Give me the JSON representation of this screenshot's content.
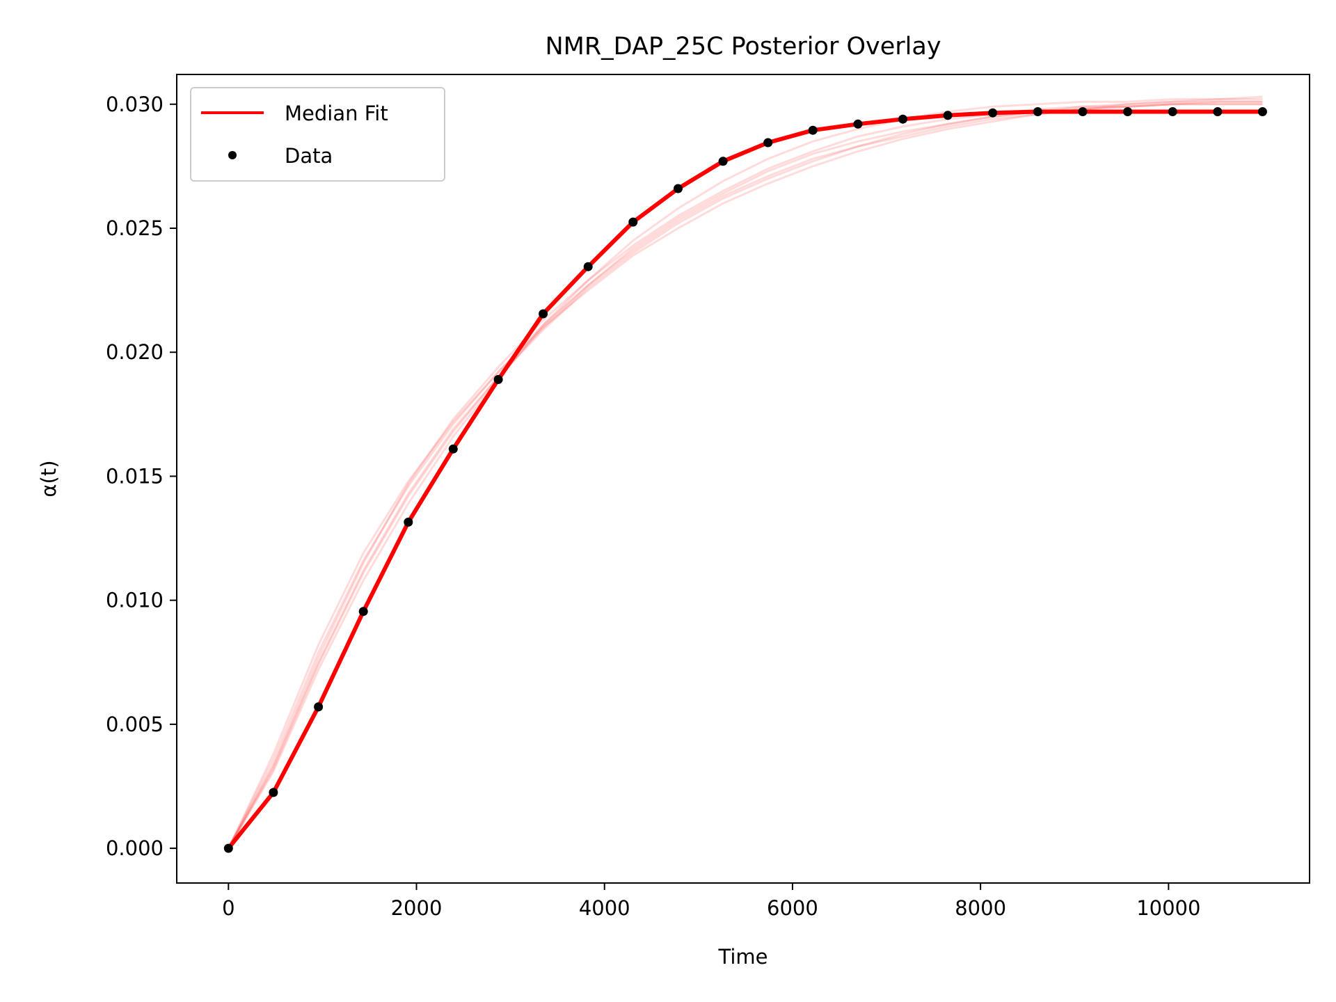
{
  "chart_data": {
    "type": "line",
    "title": "NMR_DAP_25C Posterior Overlay",
    "xlabel": "Time",
    "ylabel": "α(t)",
    "xlim": [
      -550,
      11500
    ],
    "ylim": [
      -0.0014,
      0.0312
    ],
    "xticks": [
      0,
      2000,
      4000,
      6000,
      8000,
      10000
    ],
    "xtick_labels": [
      "0",
      "2000",
      "4000",
      "6000",
      "8000",
      "10000"
    ],
    "yticks": [
      0.0,
      0.005,
      0.01,
      0.015,
      0.02,
      0.025,
      0.03
    ],
    "ytick_labels": [
      "0.000",
      "0.005",
      "0.010",
      "0.015",
      "0.020",
      "0.025",
      "0.030"
    ],
    "grid": false,
    "legend": {
      "position": "top-left",
      "entries": [
        "Median Fit",
        "Data"
      ]
    },
    "colors": {
      "median": "#ff0000",
      "posterior": "#ff0000",
      "data": "#000000"
    },
    "x": [
      0,
      478,
      957,
      1435,
      1913,
      2391,
      2870,
      3348,
      3826,
      4304,
      4783,
      5261,
      5739,
      6217,
      6696,
      7174,
      7652,
      8130,
      8609,
      9087,
      9565,
      10043,
      10522,
      11000
    ],
    "series": [
      {
        "name": "Median Fit",
        "kind": "line",
        "values": [
          0.0,
          0.00225,
          0.0057,
          0.00955,
          0.01315,
          0.0161,
          0.0189,
          0.02155,
          0.02345,
          0.02525,
          0.0266,
          0.0277,
          0.02845,
          0.02895,
          0.0292,
          0.0294,
          0.02955,
          0.02965,
          0.0297,
          0.0297,
          0.0297,
          0.0297,
          0.0297,
          0.0297
        ]
      },
      {
        "name": "Data",
        "kind": "scatter",
        "values": [
          0.0,
          0.00225,
          0.0057,
          0.00955,
          0.01315,
          0.0161,
          0.0189,
          0.02155,
          0.02345,
          0.02525,
          0.0266,
          0.0277,
          0.02845,
          0.02895,
          0.0292,
          0.0294,
          0.02955,
          0.02965,
          0.0297,
          0.0297,
          0.0297,
          0.0297,
          0.0297,
          0.0297
        ]
      }
    ],
    "posterior_samples": [
      [
        0.0,
        0.0031,
        0.0072,
        0.0108,
        0.0139,
        0.0166,
        0.0189,
        0.0211,
        0.0229,
        0.0245,
        0.0258,
        0.0269,
        0.0278,
        0.0285,
        0.029,
        0.0294,
        0.0297,
        0.0299,
        0.03,
        0.0301,
        0.0301,
        0.0302,
        0.0302,
        0.0302
      ],
      [
        0.0,
        0.0033,
        0.0075,
        0.0112,
        0.0143,
        0.0169,
        0.019,
        0.021,
        0.0227,
        0.0242,
        0.0254,
        0.0264,
        0.0273,
        0.028,
        0.0285,
        0.0289,
        0.0292,
        0.0295,
        0.0297,
        0.0298,
        0.0299,
        0.03,
        0.03,
        0.03
      ],
      [
        0.0,
        0.0036,
        0.0079,
        0.0116,
        0.0146,
        0.0171,
        0.0192,
        0.0211,
        0.0227,
        0.0241,
        0.0253,
        0.0263,
        0.0271,
        0.0278,
        0.0283,
        0.0287,
        0.0291,
        0.0294,
        0.0296,
        0.0298,
        0.0299,
        0.03,
        0.0301,
        0.0301
      ],
      [
        0.0,
        0.0038,
        0.0082,
        0.0119,
        0.0148,
        0.0172,
        0.0192,
        0.021,
        0.0225,
        0.0239,
        0.025,
        0.026,
        0.0268,
        0.0275,
        0.0281,
        0.0286,
        0.029,
        0.0293,
        0.0296,
        0.0298,
        0.03,
        0.0301,
        0.0302,
        0.0303
      ],
      [
        0.0,
        0.0034,
        0.0077,
        0.0115,
        0.0147,
        0.0173,
        0.0194,
        0.0213,
        0.0229,
        0.0243,
        0.0255,
        0.0265,
        0.0274,
        0.0281,
        0.0287,
        0.0291,
        0.0294,
        0.0296,
        0.0298,
        0.0299,
        0.0299,
        0.03,
        0.03,
        0.03
      ],
      [
        0.0,
        0.0032,
        0.0074,
        0.0111,
        0.0142,
        0.0168,
        0.019,
        0.0209,
        0.0226,
        0.024,
        0.0252,
        0.0262,
        0.027,
        0.0277,
        0.0283,
        0.0288,
        0.0292,
        0.0295,
        0.0297,
        0.0299,
        0.03,
        0.0301,
        0.0301,
        0.0301
      ]
    ]
  }
}
